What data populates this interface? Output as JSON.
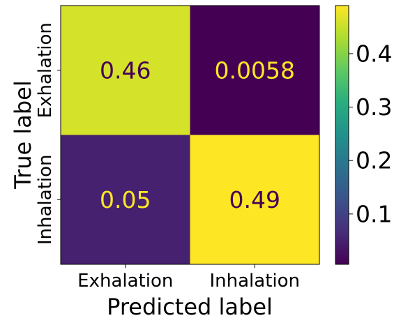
{
  "chart_data": {
    "type": "heatmap",
    "title": "",
    "xlabel": "Predicted label",
    "ylabel": "True label",
    "x_categories": [
      "Exhalation",
      "Inhalation"
    ],
    "y_categories": [
      "Exhalation",
      "Inhalation"
    ],
    "cells": [
      {
        "row": 0,
        "col": 0,
        "value": 0.46,
        "label": "0.46"
      },
      {
        "row": 0,
        "col": 1,
        "value": 0.0058,
        "label": "0.0058"
      },
      {
        "row": 1,
        "col": 0,
        "value": 0.05,
        "label": "0.05"
      },
      {
        "row": 1,
        "col": 1,
        "value": 0.49,
        "label": "0.49"
      }
    ],
    "colorbar": {
      "colormap": "viridis",
      "vmin": 0.0058,
      "vmax": 0.49,
      "ticks": [
        0.1,
        0.2,
        0.3,
        0.4
      ],
      "tick_labels": [
        "0.1",
        "0.2",
        "0.3",
        "0.4"
      ]
    }
  }
}
